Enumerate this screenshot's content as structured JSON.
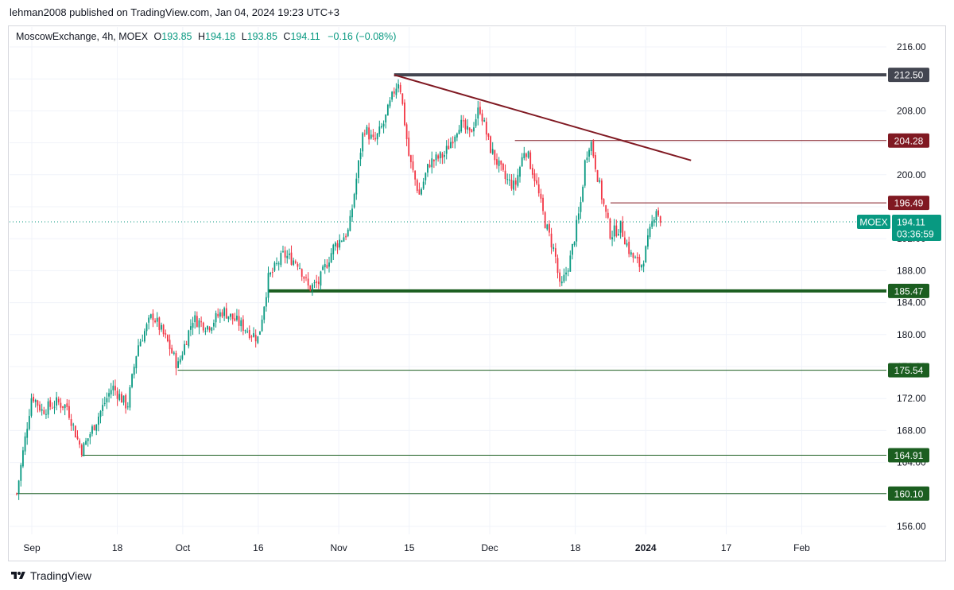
{
  "header": {
    "text": "lehman2008 published on TradingView.com, Jan 04, 2024 19:23 UTC+3"
  },
  "legend": {
    "symbol": "MoscowExchange, 4h, MOEX",
    "open_label": "O",
    "open": "193.85",
    "high_label": "H",
    "high": "194.18",
    "low_label": "L",
    "low": "193.85",
    "close_label": "C",
    "close": "194.11",
    "change": "−0.16 (−0.08%)"
  },
  "footer": {
    "brand": "TradingView",
    "logo_icon": "tradingview-logo-icon"
  },
  "chart_data": {
    "type": "candlestick",
    "symbol": "MOEX",
    "interval": "4h",
    "ylim": [
      154.0,
      220.0
    ],
    "y_ticks": [
      "156.00",
      "160.00",
      "164.00",
      "168.00",
      "172.00",
      "176.00",
      "180.00",
      "184.00",
      "188.00",
      "192.00",
      "196.00",
      "200.00",
      "204.00",
      "208.00",
      "212.00",
      "216.00"
    ],
    "x_ticks": [
      "Sep",
      "18",
      "Oct",
      "16",
      "Nov",
      "15",
      "Dec",
      "18",
      "2024",
      "17",
      "Feb"
    ],
    "x_tick_dates": [
      "2023-09-01",
      "2023-09-18",
      "2023-10-01",
      "2023-10-16",
      "2023-11-01",
      "2023-11-15",
      "2023-12-01",
      "2023-12-18",
      "2024-01-01",
      "2024-01-17",
      "2024-02-01"
    ],
    "x_range": [
      "2023-08-29",
      "2024-02-15"
    ],
    "path_points": [
      [
        "2023-08-29",
        160.1
      ],
      [
        "2023-09-01",
        172.5
      ],
      [
        "2023-09-03",
        170.5
      ],
      [
        "2023-09-06",
        171.5
      ],
      [
        "2023-09-08",
        171.0
      ],
      [
        "2023-09-10",
        167.0
      ],
      [
        "2023-09-11",
        165.5
      ],
      [
        "2023-09-14",
        169.5
      ],
      [
        "2023-09-17",
        173.5
      ],
      [
        "2023-09-20",
        171.0
      ],
      [
        "2023-09-22",
        178.5
      ],
      [
        "2023-09-25",
        182.5
      ],
      [
        "2023-09-28",
        179.0
      ],
      [
        "2023-09-30",
        176.0
      ],
      [
        "2023-10-03",
        182.0
      ],
      [
        "2023-10-06",
        181.0
      ],
      [
        "2023-10-09",
        183.0
      ],
      [
        "2023-10-12",
        181.5
      ],
      [
        "2023-10-16",
        179.5
      ],
      [
        "2023-10-18",
        187.0
      ],
      [
        "2023-10-21",
        190.0
      ],
      [
        "2023-10-24",
        189.0
      ],
      [
        "2023-10-26",
        185.8
      ],
      [
        "2023-10-28",
        186.5
      ],
      [
        "2023-10-31",
        191.0
      ],
      [
        "2023-11-03",
        193.0
      ],
      [
        "2023-11-06",
        206.0
      ],
      [
        "2023-11-08",
        204.0
      ],
      [
        "2023-11-10",
        206.5
      ],
      [
        "2023-11-12",
        210.5
      ],
      [
        "2023-11-13",
        212.0
      ],
      [
        "2023-11-15",
        202.0
      ],
      [
        "2023-11-17",
        197.5
      ],
      [
        "2023-11-19",
        201.5
      ],
      [
        "2023-11-22",
        202.5
      ],
      [
        "2023-11-25",
        206.5
      ],
      [
        "2023-11-27",
        205.0
      ],
      [
        "2023-11-29",
        208.5
      ],
      [
        "2023-12-01",
        203.5
      ],
      [
        "2023-12-04",
        199.5
      ],
      [
        "2023-12-06",
        198.5
      ],
      [
        "2023-12-08",
        203.5
      ],
      [
        "2023-12-10",
        199.5
      ],
      [
        "2023-12-12",
        194.0
      ],
      [
        "2023-12-14",
        190.0
      ],
      [
        "2023-12-15",
        185.5
      ],
      [
        "2023-12-17",
        189.5
      ],
      [
        "2023-12-19",
        196.0
      ],
      [
        "2023-12-20",
        202.0
      ],
      [
        "2023-12-21",
        204.5
      ],
      [
        "2023-12-23",
        198.0
      ],
      [
        "2023-12-25",
        192.5
      ],
      [
        "2023-12-27",
        193.5
      ],
      [
        "2023-12-29",
        190.0
      ],
      [
        "2023-12-31",
        188.5
      ],
      [
        "2024-01-01",
        190.5
      ],
      [
        "2024-01-03",
        196.0
      ],
      [
        "2024-01-04",
        194.11
      ]
    ],
    "horizontal_levels": [
      {
        "value": 212.5,
        "label": "212.50",
        "color": "#434651",
        "start": "2023-11-12",
        "style": "thick"
      },
      {
        "value": 204.28,
        "label": "204.28",
        "color": "#801922",
        "start": "2023-12-06",
        "style": "thin"
      },
      {
        "value": 196.49,
        "label": "196.49",
        "color": "#801922",
        "start": "2023-12-25",
        "style": "thin"
      },
      {
        "value": 185.47,
        "label": "185.47",
        "color": "#1b5e20",
        "start": "2023-10-18",
        "style": "thick"
      },
      {
        "value": 175.54,
        "label": "175.54",
        "color": "#1b5e20",
        "start": "2023-09-30",
        "style": "thin"
      },
      {
        "value": 164.91,
        "label": "164.91",
        "color": "#1b5e20",
        "start": "2023-09-11",
        "style": "thin"
      },
      {
        "value": 160.1,
        "label": "160.10",
        "color": "#1b5e20",
        "start": "2023-08-29",
        "style": "thin"
      }
    ],
    "trend_line": {
      "from": [
        "2023-11-12",
        212.5
      ],
      "to": [
        "2024-01-10",
        201.8
      ],
      "color": "#801922"
    },
    "last_price": {
      "ticker": "MOEX",
      "value": 194.11,
      "label": "194.11",
      "countdown": "03:36:59",
      "color": "#089981"
    },
    "colors": {
      "up": "#089981",
      "down": "#f23645",
      "grid": "#f0f3fa",
      "axis_text": "#131722"
    }
  }
}
